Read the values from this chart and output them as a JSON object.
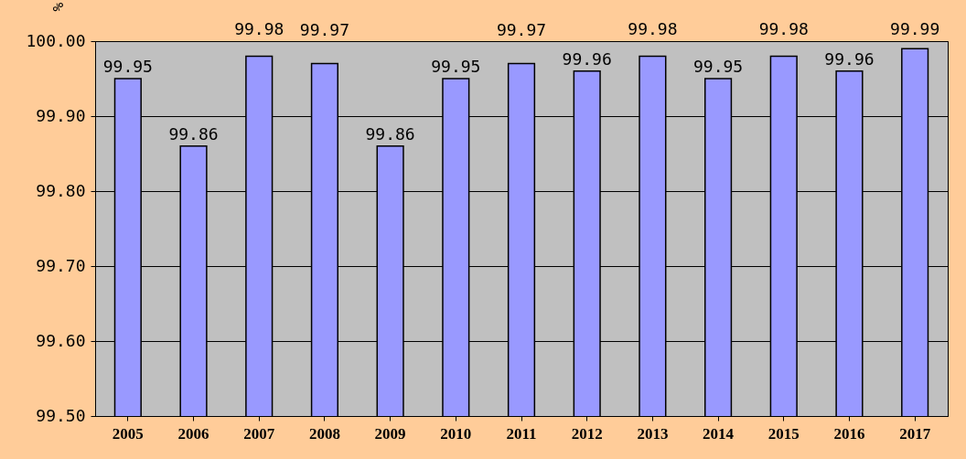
{
  "chart_data": {
    "type": "bar",
    "ylabel": "%",
    "categories": [
      "2005",
      "2006",
      "2007",
      "2008",
      "2009",
      "2010",
      "2011",
      "2012",
      "2013",
      "2014",
      "2015",
      "2016",
      "2017"
    ],
    "values": [
      99.95,
      99.86,
      99.98,
      99.97,
      99.86,
      99.95,
      99.97,
      99.96,
      99.98,
      99.95,
      99.98,
      99.96,
      99.99
    ],
    "color": "#9999ff",
    "ylim": [
      99.5,
      100
    ],
    "yticks": [
      {
        "value": 99.5,
        "label": "99.50"
      },
      {
        "value": 99.6,
        "label": "99.60"
      },
      {
        "value": 99.7,
        "label": "99.70"
      },
      {
        "value": 99.8,
        "label": "99.80"
      },
      {
        "value": 99.9,
        "label": "99.90"
      },
      {
        "value": 100,
        "label": "100.00"
      }
    ],
    "grid": "y",
    "data_labels": true
  }
}
